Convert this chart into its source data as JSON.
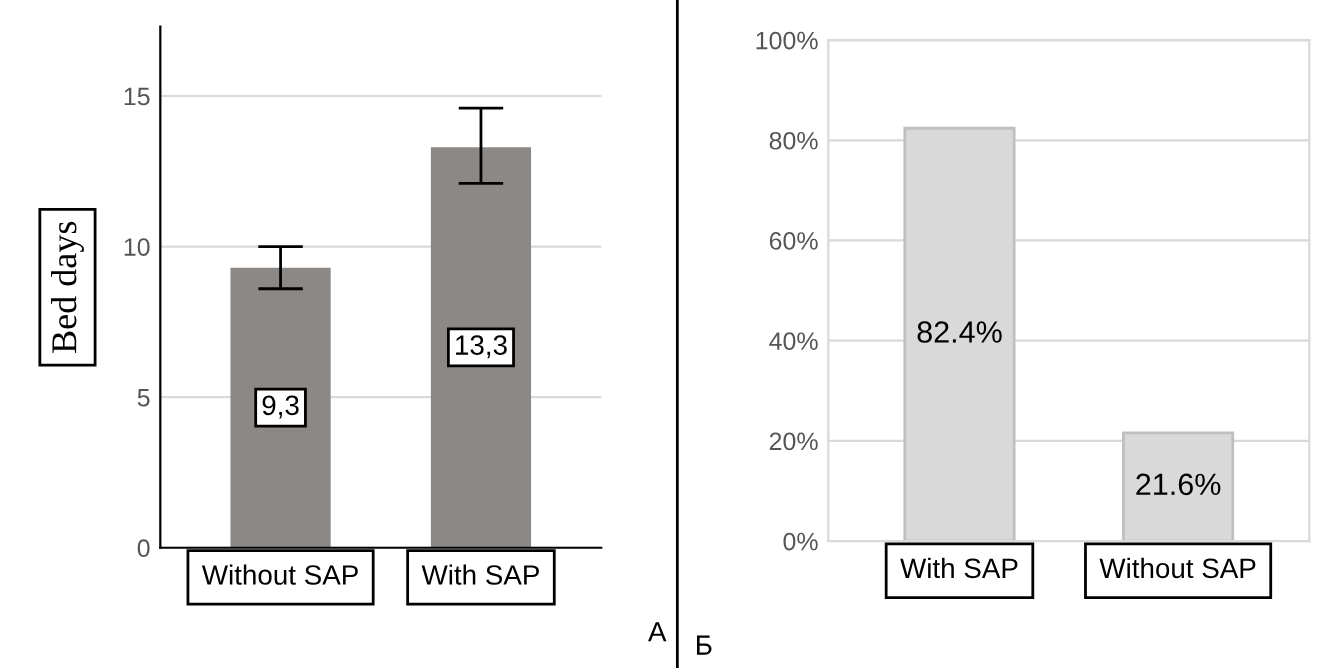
{
  "chart_data": [
    {
      "type": "bar",
      "categories": [
        "Without SAP",
        "With SAP"
      ],
      "values": [
        9.3,
        13.3
      ],
      "value_labels": [
        "9,3",
        "13,3"
      ],
      "errors": [
        [
          8.6,
          10.0
        ],
        [
          12.1,
          14.6
        ]
      ],
      "color": "#8c8886",
      "ylabel": "Bed days",
      "ylim": [
        0,
        17.3
      ],
      "yticks": [
        0,
        5,
        10,
        15
      ],
      "grid": "y",
      "annotations": [
        "А"
      ]
    },
    {
      "type": "bar",
      "categories": [
        "With SAP",
        "Without SAP"
      ],
      "values": [
        82.4,
        21.6
      ],
      "value_labels": [
        "82.4%",
        "21.6%"
      ],
      "color": "#d9d9d9",
      "ylim": [
        0,
        100
      ],
      "yticks": [
        {
          "value": 0,
          "label": "0%"
        },
        {
          "value": 20,
          "label": "20%"
        },
        {
          "value": 40,
          "label": "40%"
        },
        {
          "value": 60,
          "label": "60%"
        },
        {
          "value": 80,
          "label": "80%"
        },
        {
          "value": 100,
          "label": "100%"
        }
      ],
      "grid": "y",
      "annotations": [
        "Б"
      ]
    }
  ]
}
